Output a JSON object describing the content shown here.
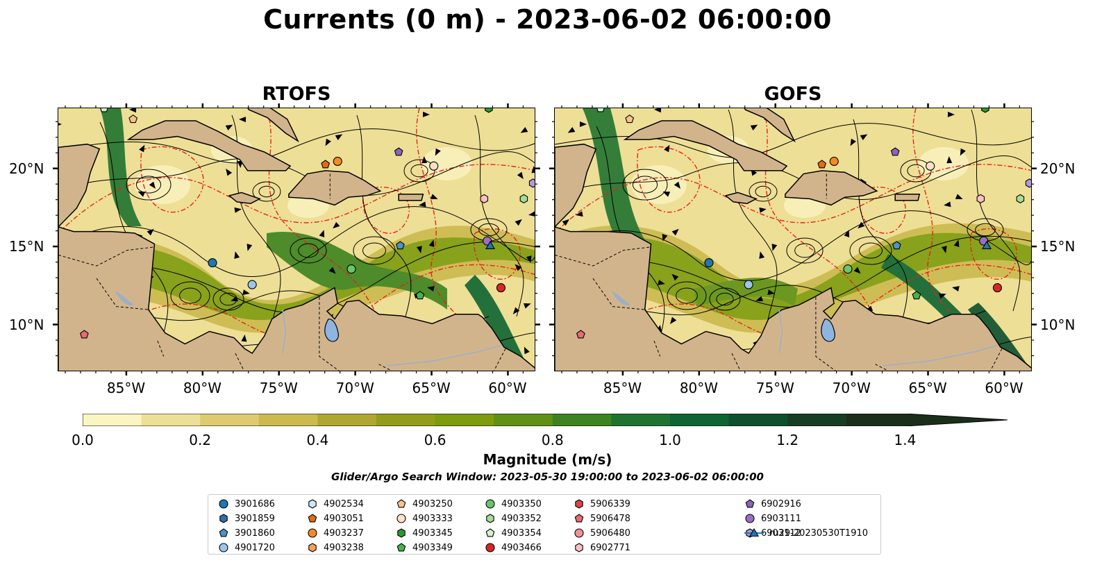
{
  "title": "Currents (0 m) - 2023-06-02 06:00:00",
  "panels": [
    {
      "title": "RTOFS"
    },
    {
      "title": "GOFS"
    }
  ],
  "axes": {
    "lon_labels": [
      "85°W",
      "80°W",
      "75°W",
      "70°W",
      "65°W",
      "60°W"
    ],
    "lat_labels": [
      "20°N",
      "15°N",
      "10°N"
    ],
    "lon_range": [
      -89.5,
      -58.2
    ],
    "lat_range": [
      7.0,
      23.9
    ]
  },
  "colorbar": {
    "label": "Magnitude (m/s)",
    "ticks": [
      "0.0",
      "0.2",
      "0.4",
      "0.6",
      "0.8",
      "1.0",
      "1.2",
      "1.4"
    ],
    "range": [
      0.0,
      1.5
    ],
    "extend": "max",
    "colors": [
      "#fbf5c2",
      "#eedf96",
      "#decb70",
      "#cbba4e",
      "#b0a732",
      "#949d1b",
      "#7d9c0e",
      "#5f9115",
      "#3d8320",
      "#1f7330",
      "#0e6432",
      "#0d502e",
      "#173d25",
      "#1b2e1a"
    ]
  },
  "subtitle": "Glider/Argo Search Window: 2023-05-30 19:00:00 to 2023-06-02 06:00:00",
  "colors": {
    "land": "#d2b48c",
    "lake": "#8fb4e0",
    "contour_red": "#e8201b",
    "streamline": "#000000"
  },
  "legend": [
    {
      "id": "3901686",
      "marker": "circle",
      "color": "#1f77b4"
    },
    {
      "id": "3901859",
      "marker": "hexagon",
      "color": "#2f6fb0"
    },
    {
      "id": "3901860",
      "marker": "pentagon",
      "color": "#4d92c8"
    },
    {
      "id": "4901720",
      "marker": "circle",
      "color": "#9cc6ea"
    },
    {
      "id": "4902534",
      "marker": "hexagon",
      "color": "#cfe6f8"
    },
    {
      "id": "4903051",
      "marker": "pentagon",
      "color": "#e66b0e"
    },
    {
      "id": "4903237",
      "marker": "circle",
      "color": "#f58a25"
    },
    {
      "id": "4903238",
      "marker": "hexagon",
      "color": "#f7a25c"
    },
    {
      "id": "4903250",
      "marker": "pentagon",
      "color": "#f8c28e"
    },
    {
      "id": "4903333",
      "marker": "circle",
      "color": "#fde1c5"
    },
    {
      "id": "4903345",
      "marker": "hexagon",
      "color": "#2a9a2f"
    },
    {
      "id": "4903349",
      "marker": "pentagon",
      "color": "#47b34a"
    },
    {
      "id": "4903350",
      "marker": "circle",
      "color": "#6cc46c"
    },
    {
      "id": "4903352",
      "marker": "hexagon",
      "color": "#a4dd96"
    },
    {
      "id": "4903354",
      "marker": "pentagon",
      "color": "#d3f2c8"
    },
    {
      "id": "4903466",
      "marker": "circle",
      "color": "#d62728"
    },
    {
      "id": "5906339",
      "marker": "hexagon",
      "color": "#e0434a"
    },
    {
      "id": "5906478",
      "marker": "pentagon",
      "color": "#ec6a70"
    },
    {
      "id": "5906480",
      "marker": "circle",
      "color": "#f49196"
    },
    {
      "id": "6902771",
      "marker": "hexagon",
      "color": "#fac0c4"
    },
    {
      "id": "6902916",
      "marker": "pentagon",
      "color": "#8a63c0"
    },
    {
      "id": "6903111",
      "marker": "circle",
      "color": "#9b6dc8"
    },
    {
      "id": "6903112",
      "marker": "hexagon",
      "color": "#b696dd"
    },
    {
      "id": "ru29-20230530T1910",
      "marker": "triangle-line",
      "color": "#1f77b4"
    }
  ],
  "floats": [
    {
      "id": "3901686",
      "lon": -79.4,
      "lat": 14.0
    },
    {
      "id": "3901860",
      "lon": -67.1,
      "lat": 15.1
    },
    {
      "id": "4901720",
      "lon": -76.8,
      "lat": 12.6
    },
    {
      "id": "4903051",
      "lon": -72.0,
      "lat": 20.3
    },
    {
      "id": "4903237",
      "lon": -71.2,
      "lat": 20.5
    },
    {
      "id": "4903250",
      "lon": -84.6,
      "lat": 23.2
    },
    {
      "id": "4903333",
      "lon": -64.9,
      "lat": 20.2
    },
    {
      "id": "4903345",
      "lon": -61.3,
      "lat": 23.9
    },
    {
      "id": "4903349",
      "lon": -65.8,
      "lat": 11.9
    },
    {
      "id": "4903350",
      "lon": -70.3,
      "lat": 13.6
    },
    {
      "id": "4903352",
      "lon": -59.0,
      "lat": 18.1
    },
    {
      "id": "4903354",
      "lon": -86.5,
      "lat": 23.9
    },
    {
      "id": "4903466",
      "lon": -60.5,
      "lat": 12.4
    },
    {
      "id": "5906478",
      "lon": -87.8,
      "lat": 9.4
    },
    {
      "id": "6902771",
      "lon": -61.6,
      "lat": 18.1
    },
    {
      "id": "6902916",
      "lon": -67.2,
      "lat": 21.1
    },
    {
      "id": "6903111",
      "lon": -61.4,
      "lat": 15.4
    },
    {
      "id": "6903112",
      "lon": -58.4,
      "lat": 19.1
    },
    {
      "id": "ru29-20230530T1910",
      "lon": -61.2,
      "lat": 15.1
    }
  ]
}
